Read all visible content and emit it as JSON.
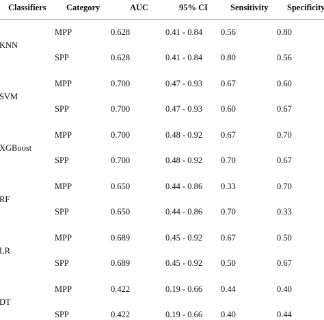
{
  "table": {
    "header": [
      "Classifiers",
      "Category",
      "AUC",
      "95% CI",
      "Sensitivity",
      "Specificity"
    ],
    "groups": [
      {
        "classifier": "KNN",
        "rows": [
          [
            "MPP",
            "0.628",
            "0.41 - 0.84",
            "0.56",
            "0.80"
          ],
          [
            "SPP",
            "0.628",
            "0.41 - 0.84",
            "0.80",
            "0.56"
          ]
        ]
      },
      {
        "classifier": "SVM",
        "rows": [
          [
            "MPP",
            "0.700",
            "0.47 - 0.93",
            "0.67",
            "0.60"
          ],
          [
            "SPP",
            "0.700",
            "0.47 - 0.93",
            "0.60",
            "0.67"
          ]
        ]
      },
      {
        "classifier": "XGBoost",
        "rows": [
          [
            "MPP",
            "0.700",
            "0.48 - 0.92",
            "0.67",
            "0.70"
          ],
          [
            "SPP",
            "0.700",
            "0.48 - 0.92",
            "0.70",
            "0.67"
          ]
        ]
      },
      {
        "classifier": "RF",
        "rows": [
          [
            "MPP",
            "0.650",
            "0.44 - 0.86",
            "0.33",
            "0.70"
          ],
          [
            "SPP",
            "0.650",
            "0.44 - 0.86",
            "0.70",
            "0.33"
          ]
        ]
      },
      {
        "classifier": "LR",
        "rows": [
          [
            "MPP",
            "0.689",
            "0.45 - 0.92",
            "0.67",
            "0.50"
          ],
          [
            "SPP",
            "0.689",
            "0.45 - 0.92",
            "0.50",
            "0.67"
          ]
        ]
      },
      {
        "classifier": "DT",
        "rows": [
          [
            "MPP",
            "0.422",
            "0.19 - 0.66",
            "0.44",
            "0.40"
          ],
          [
            "SPP",
            "0.422",
            "0.19 - 0.66",
            "0.40",
            "0.44"
          ]
        ]
      }
    ]
  }
}
